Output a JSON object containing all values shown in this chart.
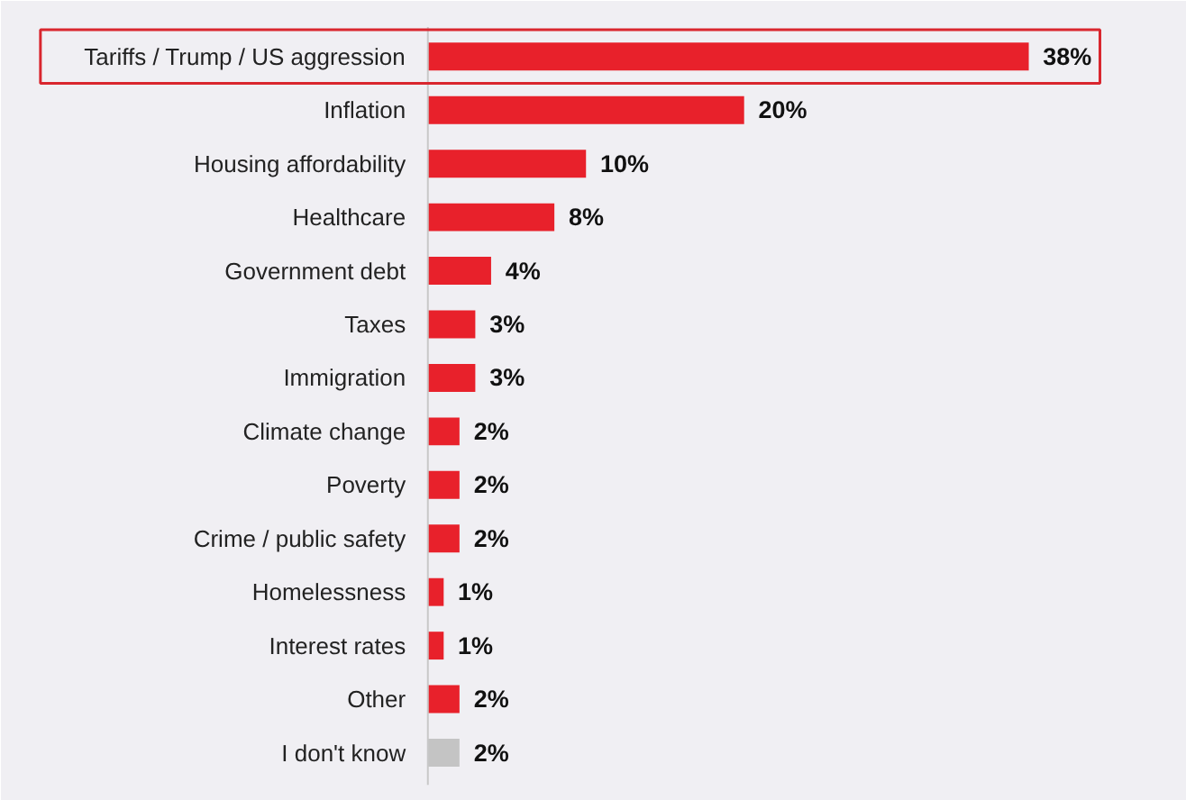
{
  "chart_data": {
    "type": "bar",
    "orientation": "horizontal",
    "categories": [
      "Tariffs / Trump / US aggression",
      "Inflation",
      "Housing affordability",
      "Healthcare",
      "Government debt",
      "Taxes",
      "Immigration",
      "Climate change",
      "Poverty",
      "Crime / public safety",
      "Homelessness",
      "Interest rates",
      "Other",
      "I don't know"
    ],
    "values": [
      38,
      20,
      10,
      8,
      4,
      3,
      3,
      2,
      2,
      2,
      1,
      1,
      2,
      2
    ],
    "value_labels": [
      "38%",
      "20%",
      "10%",
      "8%",
      "4%",
      "3%",
      "3%",
      "2%",
      "2%",
      "2%",
      "1%",
      "1%",
      "2%",
      "2%"
    ],
    "colors": [
      "#e8212b",
      "#e8212b",
      "#e8212b",
      "#e8212b",
      "#e8212b",
      "#e8212b",
      "#e8212b",
      "#e8212b",
      "#e8212b",
      "#e8212b",
      "#e8212b",
      "#e8212b",
      "#e8212b",
      "#c4c4c4"
    ]
  }
}
